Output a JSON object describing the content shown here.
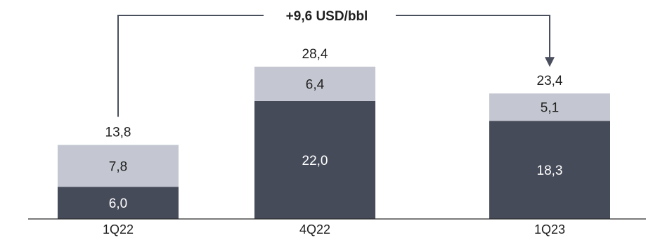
{
  "chart_data": {
    "type": "bar",
    "stacked": true,
    "categories": [
      "1Q22",
      "4Q22",
      "1Q23"
    ],
    "series": [
      {
        "values": [
          6.0,
          22.0,
          18.3
        ],
        "labels": [
          "6,0",
          "22,0",
          "18,3"
        ],
        "color": "#464b5a"
      },
      {
        "values": [
          7.8,
          6.4,
          5.1
        ],
        "labels": [
          "7,8",
          "6,4",
          "5,1"
        ],
        "color": "#c4c7d1"
      }
    ],
    "totals": [
      13.8,
      28.4,
      23.4
    ],
    "total_labels": [
      "13,8",
      "28,4",
      "23,4"
    ],
    "annotation": {
      "text": "+9,6 USD/bbl",
      "from": "1Q22",
      "to": "1Q23"
    },
    "ylim": [
      0,
      28.4
    ],
    "grid": false,
    "legend": "none",
    "xlabel": "",
    "ylabel": ""
  }
}
